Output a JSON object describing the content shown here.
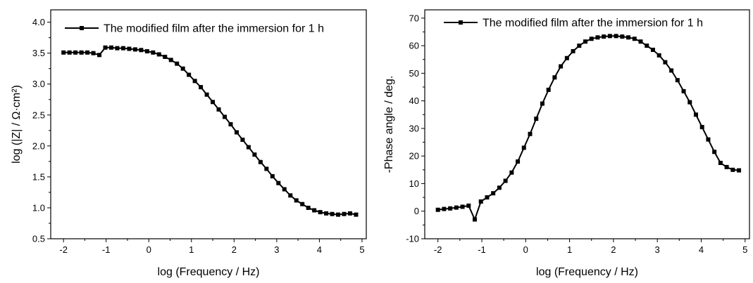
{
  "chart_data": [
    {
      "type": "line",
      "xlabel": "log (Frequency / Hz)",
      "ylabel": "log (|Z| / Ω·cm²)",
      "xlim": [
        -2.3,
        5.1
      ],
      "ylim": [
        0.5,
        4.2
      ],
      "xticks": [
        "-2",
        "-1",
        "0",
        "1",
        "2",
        "3",
        "4",
        "5"
      ],
      "yticks": [
        "0.5",
        "1.0",
        "1.5",
        "2.0",
        "2.5",
        "3.0",
        "3.5",
        "4.0"
      ],
      "legend": "top-left",
      "series": [
        {
          "name": "The modified film after the immersion for 1 h",
          "color": "#000000",
          "marker": "square",
          "x": [
            -2.0,
            -1.86,
            -1.72,
            -1.58,
            -1.44,
            -1.3,
            -1.16,
            -1.02,
            -0.88,
            -0.74,
            -0.6,
            -0.46,
            -0.32,
            -0.18,
            -0.04,
            0.1,
            0.24,
            0.38,
            0.52,
            0.66,
            0.8,
            0.94,
            1.08,
            1.22,
            1.36,
            1.5,
            1.64,
            1.78,
            1.92,
            2.06,
            2.2,
            2.34,
            2.48,
            2.62,
            2.76,
            2.9,
            3.04,
            3.18,
            3.32,
            3.46,
            3.6,
            3.74,
            3.88,
            4.02,
            4.16,
            4.3,
            4.44,
            4.58,
            4.72,
            4.86
          ],
          "y": [
            3.51,
            3.51,
            3.51,
            3.51,
            3.51,
            3.5,
            3.47,
            3.59,
            3.59,
            3.58,
            3.58,
            3.57,
            3.56,
            3.55,
            3.53,
            3.51,
            3.48,
            3.44,
            3.39,
            3.33,
            3.25,
            3.15,
            3.05,
            2.95,
            2.83,
            2.71,
            2.59,
            2.47,
            2.35,
            2.22,
            2.1,
            1.98,
            1.86,
            1.74,
            1.63,
            1.51,
            1.4,
            1.3,
            1.2,
            1.12,
            1.06,
            1.0,
            0.96,
            0.93,
            0.91,
            0.9,
            0.89,
            0.9,
            0.91,
            0.89
          ]
        }
      ]
    },
    {
      "type": "line",
      "xlabel": "log (Frequency / Hz)",
      "ylabel": "-Phase angle / deg.",
      "xlim": [
        -2.3,
        5.1
      ],
      "ylim": [
        -10,
        73
      ],
      "xticks": [
        "-2",
        "-1",
        "0",
        "1",
        "2",
        "3",
        "4",
        "5"
      ],
      "yticks": [
        "-10",
        "0",
        "10",
        "20",
        "30",
        "40",
        "50",
        "60",
        "70"
      ],
      "legend": "top-left",
      "series": [
        {
          "name": "The modified film after the immersion for 1 h",
          "color": "#000000",
          "marker": "square",
          "x": [
            -2.0,
            -1.86,
            -1.72,
            -1.58,
            -1.44,
            -1.3,
            -1.16,
            -1.02,
            -0.88,
            -0.74,
            -0.6,
            -0.46,
            -0.32,
            -0.18,
            -0.04,
            0.1,
            0.24,
            0.38,
            0.52,
            0.66,
            0.8,
            0.94,
            1.08,
            1.22,
            1.36,
            1.5,
            1.64,
            1.78,
            1.92,
            2.06,
            2.2,
            2.34,
            2.48,
            2.62,
            2.76,
            2.9,
            3.04,
            3.18,
            3.32,
            3.46,
            3.6,
            3.74,
            3.88,
            4.02,
            4.16,
            4.3,
            4.44,
            4.58,
            4.72,
            4.86
          ],
          "y": [
            0.5,
            0.8,
            1.0,
            1.3,
            1.6,
            2.0,
            -3.0,
            3.5,
            5.0,
            6.5,
            8.5,
            11.0,
            14.0,
            18.0,
            23.0,
            28.0,
            33.5,
            39.0,
            44.0,
            48.5,
            52.5,
            55.5,
            58.0,
            60.0,
            61.5,
            62.5,
            63.0,
            63.3,
            63.5,
            63.5,
            63.3,
            63.0,
            62.5,
            61.5,
            60.0,
            58.5,
            56.5,
            54.0,
            51.0,
            47.5,
            43.5,
            39.5,
            35.0,
            30.5,
            26.0,
            21.5,
            17.5,
            16.0,
            15.0,
            14.8
          ]
        }
      ]
    }
  ]
}
